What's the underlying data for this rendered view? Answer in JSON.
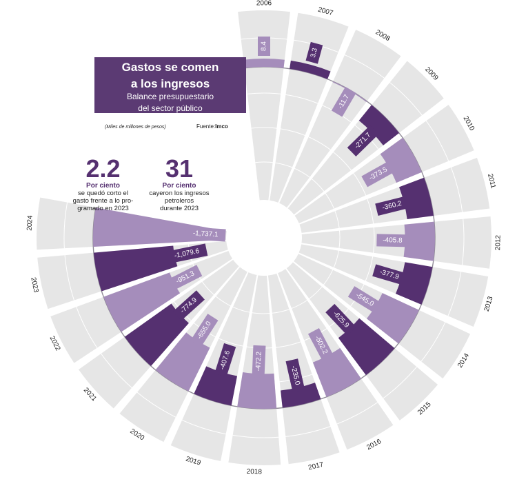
{
  "header": {
    "title_line1": "Gastos se comen",
    "title_line2": "a los ingresos",
    "subtitle_line1": "Balance presupuestario",
    "subtitle_line2": "del sector público"
  },
  "units_note": "(Miles de millones de pesos)",
  "source": {
    "label": "Fuente:",
    "org": "Imco"
  },
  "stats": [
    {
      "value": "2.2",
      "unit": "Por ciento",
      "line1": "se quedó corto el",
      "line2": "gasto frente a lo pro-",
      "line3": "gramado en 2023"
    },
    {
      "value": "31",
      "unit": "Por ciento",
      "line1": "cayeron los ingresos",
      "line2": "petroleros",
      "line3": "durante 2023"
    }
  ],
  "colors": {
    "dark": "#553070",
    "light": "#a58dbb",
    "background_bar": "#e6e6e6"
  },
  "chart_data": {
    "type": "bar",
    "layout": "radial",
    "title": "Gastos se comen a los ingresos",
    "subtitle": "Balance presupuestario del sector público",
    "ylabel": "Miles de millones de pesos",
    "categories": [
      "2006",
      "2007",
      "2008",
      "2009",
      "2010",
      "2011",
      "2012",
      "2013",
      "2014",
      "2015",
      "2016",
      "2017",
      "2018",
      "2019",
      "2020",
      "2021",
      "2022",
      "2023",
      "2024"
    ],
    "values": [
      8.4,
      3.3,
      -11.7,
      -271.7,
      -373.5,
      -360.2,
      -405.8,
      -377.9,
      -545.0,
      -625.9,
      -502.2,
      -235.0,
      -472.2,
      -407.6,
      -655.0,
      -774.9,
      -951.3,
      -1079.6,
      -1737.1
    ],
    "labels": [
      "8.4",
      "3.3",
      "-11.7",
      "-271.7",
      "-373.5",
      "-360.2",
      "-405.8",
      "-377.9",
      "-545.0",
      "-625.9",
      "-502.2",
      "-235.0",
      "-472.2",
      "-407.6",
      "-655.0",
      "-774.9",
      "-951.3",
      "-1,079.6",
      "-1,737.1"
    ],
    "ylim": [
      -1800,
      100
    ]
  }
}
